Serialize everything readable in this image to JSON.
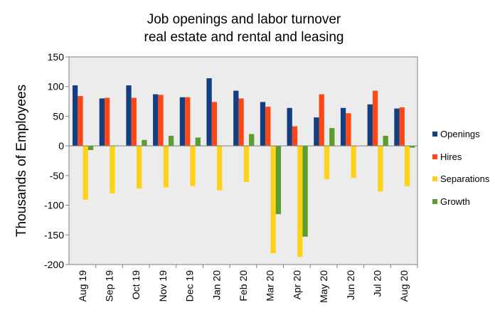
{
  "chart_data": {
    "type": "bar",
    "title_lines": [
      "Job openings and labor turnover",
      "real estate and rental and leasing"
    ],
    "xlabel": "",
    "ylabel": "Thousands of Employees",
    "ylim": [
      -200,
      150
    ],
    "yticks": [
      150,
      100,
      50,
      0,
      -50,
      -100,
      -150,
      -200
    ],
    "grid": false,
    "plot_background": "#ececec",
    "legend_position": "right",
    "categories": [
      "Aug 19",
      "Sep 19",
      "Oct 19",
      "Nov 19",
      "Dec 19",
      "Jan 20",
      "Feb 20",
      "Mar 20",
      "Apr 20",
      "May 20",
      "Jun 20",
      "Jul 20",
      "Aug 20"
    ],
    "series": [
      {
        "name": "Openings",
        "color": "#123f82",
        "values": [
          102,
          80,
          102,
          87,
          82,
          114,
          93,
          74,
          64,
          48,
          64,
          70,
          63
        ]
      },
      {
        "name": "Hires",
        "color": "#ff4715",
        "values": [
          84,
          81,
          81,
          86,
          82,
          74,
          80,
          66,
          33,
          87,
          55,
          93,
          65
        ]
      },
      {
        "name": "Separations",
        "color": "#ffd21a",
        "values": [
          -91,
          -80,
          -72,
          -70,
          -68,
          -75,
          -61,
          -181,
          -187,
          -56,
          -54,
          -77,
          -68
        ]
      },
      {
        "name": "Growth",
        "color": "#5c9e2e",
        "values": [
          -7,
          0,
          10,
          17,
          14,
          0,
          20,
          -115,
          -153,
          30,
          0,
          17,
          -3
        ]
      }
    ]
  }
}
